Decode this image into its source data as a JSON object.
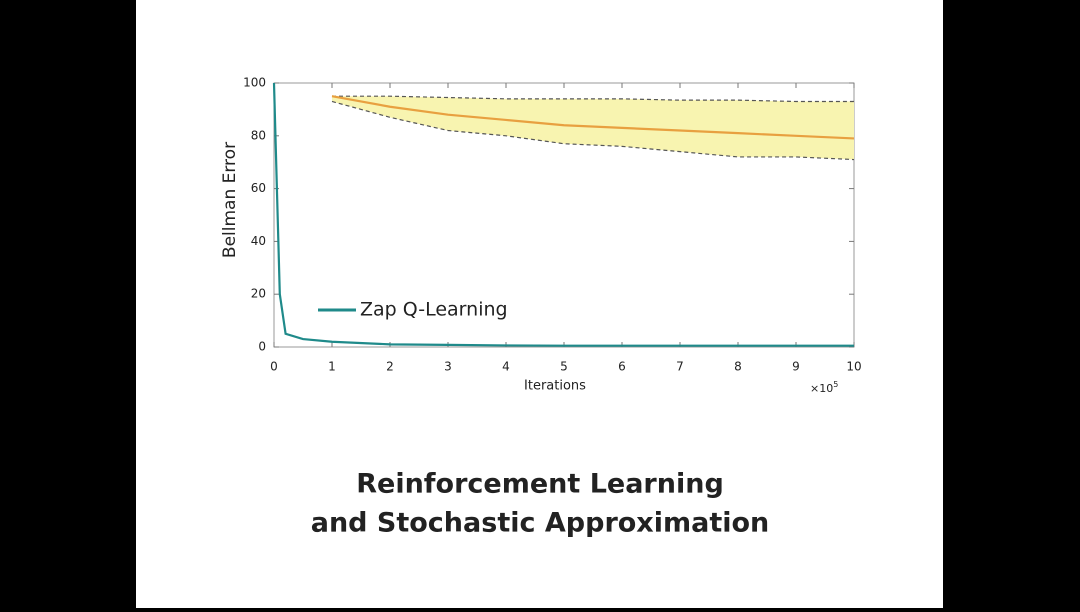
{
  "chart_data": {
    "type": "line",
    "x": [
      0,
      0.1,
      0.2,
      0.5,
      1,
      2,
      3,
      4,
      5,
      6,
      7,
      8,
      9,
      10
    ],
    "series": [
      {
        "name": "Zap Q-Learning",
        "color": "#1f8a8a",
        "dashed": false,
        "values": [
          100,
          20,
          5,
          3,
          2,
          1,
          0.8,
          0.6,
          0.5,
          0.5,
          0.5,
          0.5,
          0.5,
          0.5
        ]
      },
      {
        "color": "#555555",
        "dashed": true,
        "values": [
          null,
          null,
          null,
          null,
          95,
          95,
          94.5,
          94,
          94,
          94,
          93.5,
          93.5,
          93,
          93
        ]
      },
      {
        "color": "#e8a040",
        "dashed": false,
        "values": [
          null,
          null,
          null,
          null,
          95,
          91,
          88,
          86,
          84,
          83,
          82,
          81,
          80,
          79
        ]
      },
      {
        "color": "#555555",
        "dashed": true,
        "values": [
          null,
          null,
          null,
          null,
          93,
          87,
          82,
          80,
          77,
          76,
          74,
          72,
          72,
          71
        ]
      }
    ],
    "band_color": "#f8f4b0",
    "xlim": [
      0,
      10
    ],
    "xticks": [
      0,
      1,
      2,
      3,
      4,
      5,
      6,
      7,
      8,
      9,
      10
    ],
    "ylim": [
      0,
      100
    ],
    "yticks": [
      0,
      20,
      40,
      60,
      80,
      100
    ],
    "x_label": "Iterations",
    "y_label": "Bellman Error",
    "x_multiplier": {
      "base": "×10",
      "exponent": "5"
    },
    "legend": "lower-left"
  },
  "slide": {
    "title_lines": [
      "Reinforcement Learning",
      "and Stochastic Approximation"
    ]
  }
}
